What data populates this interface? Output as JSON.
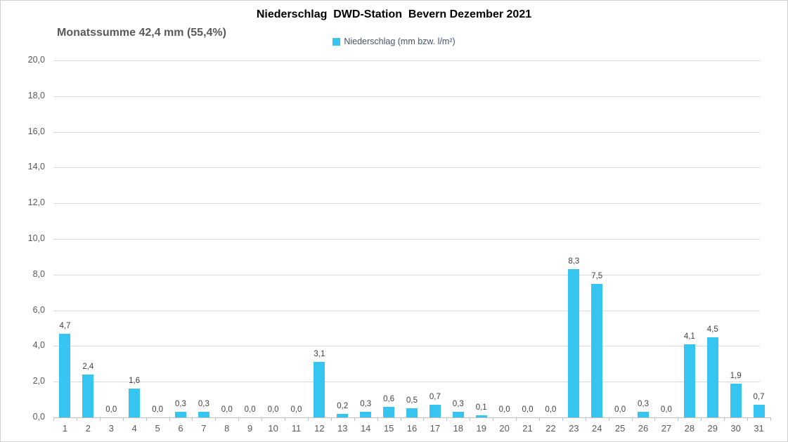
{
  "header": {
    "title": "Niederschlag  DWD-Station  Bevern Dezember 2021",
    "subtitle": "Monatssumme 42,4 mm (55,4%)"
  },
  "legend": {
    "label": "Niederschlag (mm bzw. l/m²)",
    "swatch_color": "#36c5f1"
  },
  "chart_data": {
    "type": "bar",
    "title": "Niederschlag  DWD-Station  Bevern Dezember 2021",
    "subtitle": "Monatssumme 42,4 mm (55,4%)",
    "legend": [
      "Niederschlag (mm bzw. l/m²)"
    ],
    "legend_position": "top",
    "xlabel": "",
    "ylabel": "",
    "categories": [
      "1",
      "2",
      "3",
      "4",
      "5",
      "6",
      "7",
      "8",
      "9",
      "10",
      "11",
      "12",
      "13",
      "14",
      "15",
      "16",
      "17",
      "18",
      "19",
      "20",
      "21",
      "22",
      "23",
      "24",
      "25",
      "26",
      "27",
      "28",
      "29",
      "30",
      "31"
    ],
    "values": [
      4.7,
      2.4,
      0.0,
      1.6,
      0.0,
      0.3,
      0.3,
      0.0,
      0.0,
      0.0,
      0.0,
      3.1,
      0.2,
      0.3,
      0.6,
      0.5,
      0.7,
      0.3,
      0.1,
      0.0,
      0.0,
      0.0,
      8.3,
      7.5,
      0.0,
      0.3,
      0.0,
      4.1,
      4.5,
      1.9,
      0.7
    ],
    "value_labels": [
      "4,7",
      "2,4",
      "0,0",
      "1,6",
      "0,0",
      "0,3",
      "0,3",
      "0,0",
      "0,0",
      "0,0",
      "0,0",
      "3,1",
      "0,2",
      "0,3",
      "0,6",
      "0,5",
      "0,7",
      "0,3",
      "0,1",
      "0,0",
      "0,0",
      "0,0",
      "8,3",
      "7,5",
      "0,0",
      "0,3",
      "0,0",
      "4,1",
      "4,5",
      "1,9",
      "0,7"
    ],
    "ylim": [
      0,
      20
    ],
    "ytick_step": 2,
    "ytick_labels": [
      "0,0",
      "2,0",
      "4,0",
      "6,0",
      "8,0",
      "10,0",
      "12,0",
      "14,0",
      "16,0",
      "18,0",
      "20,0"
    ],
    "grid": true,
    "bar_color": "#36c5f1"
  },
  "colors": {
    "bar": "#36c5f1",
    "gridline": "#d9d9d9",
    "axis_line": "#bfbfbf",
    "axis_text": "#595959",
    "value_label_text": "#404040",
    "legend_text": "#44546a",
    "title_text": "#000000",
    "subtitle_text": "#595959"
  }
}
